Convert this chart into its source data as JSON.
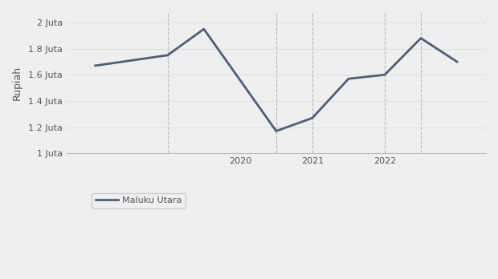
{
  "years": [
    2018.0,
    2019.0,
    2019.5,
    2020.5,
    2021.0,
    2021.5,
    2022.0,
    2022.5,
    2023.0
  ],
  "values": [
    1670000,
    1750000,
    1950000,
    1170000,
    1270000,
    1570000,
    1600000,
    1880000,
    1700000
  ],
  "line_color": "#4a6080",
  "line_width": 2.0,
  "background_color": "#efefef",
  "ylabel": "Rupiah",
  "legend_label": "Maluku Utara",
  "ylim": [
    1000000,
    2080000
  ],
  "yticks": [
    1000000,
    1200000,
    1400000,
    1600000,
    1800000,
    2000000
  ],
  "ytick_labels": [
    "1 Juta",
    "1.2 Juta",
    "1.4 Juta",
    "1.6 Juta",
    "1.8 Juta",
    "2 Juta"
  ],
  "xlim": [
    2017.6,
    2023.4
  ],
  "xticks": [
    2020,
    2021,
    2022
  ],
  "vgrid_x": [
    2019.0,
    2020.5,
    2021.0,
    2022.0,
    2022.5
  ],
  "grid_color": "#aaaaaa",
  "grid_linestyle": "--",
  "grid_alpha": 0.8,
  "font_color": "#555555",
  "ylabel_fontsize": 9,
  "tick_fontsize": 8,
  "legend_fontsize": 8
}
